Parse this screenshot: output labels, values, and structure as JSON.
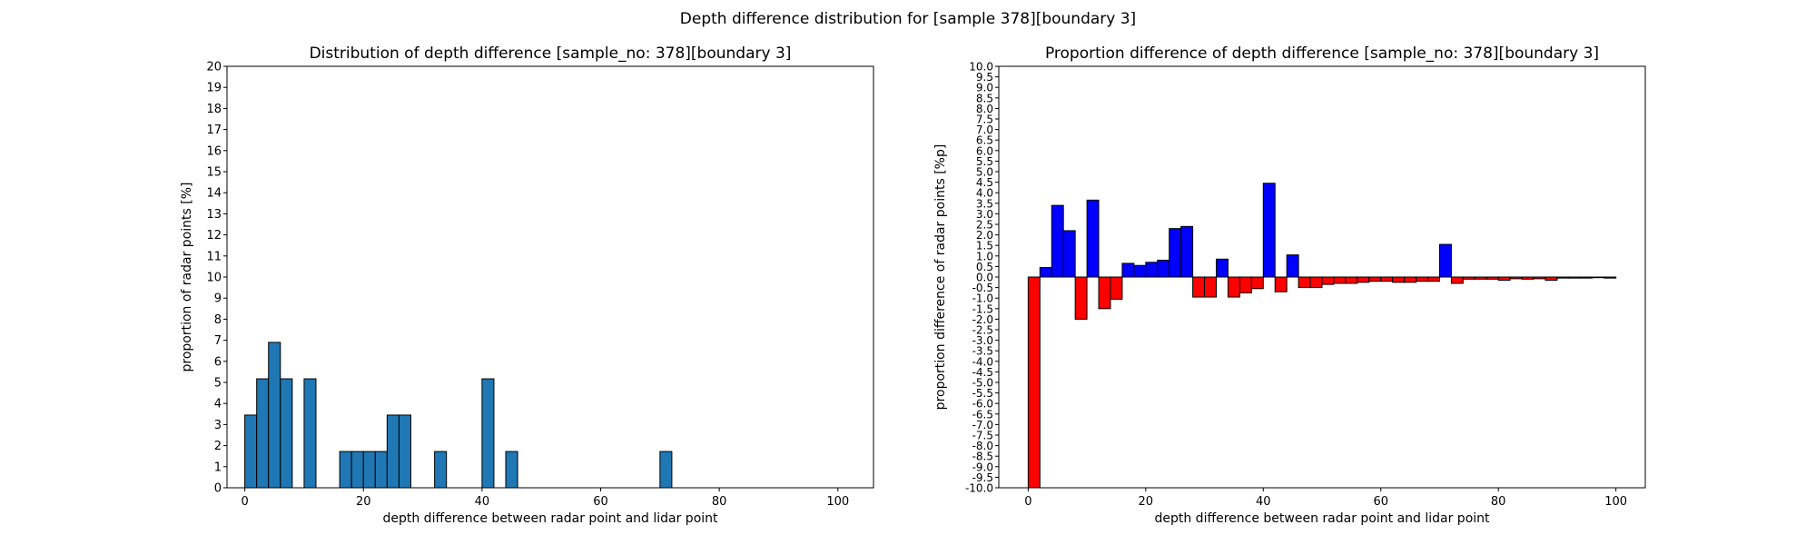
{
  "figure": {
    "suptitle": "Depth difference distribution for [sample 378][boundary 3]"
  },
  "chart_data": [
    {
      "type": "bar",
      "title": "Distribution of depth difference [sample_no: 378][boundary 3]",
      "xlabel": "depth difference between radar point and lidar point",
      "ylabel": "proportion of radar points [%]",
      "xlim": [
        -3,
        106
      ],
      "ylim": [
        0,
        20
      ],
      "xticks": [
        0,
        20,
        40,
        60,
        80,
        100
      ],
      "yticks": [
        0,
        1,
        2,
        3,
        4,
        5,
        6,
        7,
        8,
        9,
        10,
        11,
        12,
        13,
        14,
        15,
        16,
        17,
        18,
        19,
        20
      ],
      "bin_width": 2,
      "bar_color": "#1f77b4",
      "edge_color": "#000000",
      "grid": false,
      "x": [
        0,
        2,
        4,
        6,
        10,
        16,
        18,
        20,
        22,
        24,
        26,
        32,
        40,
        44,
        70
      ],
      "values": [
        3.45,
        5.17,
        6.9,
        5.17,
        5.17,
        1.72,
        1.72,
        1.72,
        1.72,
        3.45,
        3.45,
        1.72,
        5.17,
        1.72,
        1.72
      ]
    },
    {
      "type": "bar",
      "title": "Proportion difference of depth difference [sample_no: 378][boundary 3]",
      "xlabel": "depth difference between radar point and lidar point",
      "ylabel": "proportion difference of radar points [%p]",
      "xlim": [
        -5,
        105
      ],
      "ylim": [
        -10,
        10
      ],
      "xticks": [
        0,
        20,
        40,
        60,
        80,
        100
      ],
      "ytick_step": 0.5,
      "bin_width": 2,
      "positive_color": "#0000ff",
      "negative_color": "#ff0000",
      "edge_color": "#000000",
      "grid": false,
      "x": [
        0,
        2,
        4,
        6,
        8,
        10,
        12,
        14,
        16,
        18,
        20,
        22,
        24,
        26,
        28,
        30,
        32,
        34,
        36,
        38,
        40,
        42,
        44,
        46,
        48,
        50,
        52,
        54,
        56,
        58,
        60,
        62,
        64,
        66,
        68,
        70,
        72,
        74,
        76,
        78,
        80,
        82,
        84,
        86,
        88,
        90,
        92,
        94,
        96,
        98
      ],
      "values": [
        -10.0,
        0.45,
        3.4,
        2.2,
        -2.0,
        3.65,
        -1.5,
        -1.05,
        0.65,
        0.55,
        0.7,
        0.8,
        2.3,
        2.4,
        -0.95,
        -0.95,
        0.85,
        -0.95,
        -0.75,
        -0.55,
        4.45,
        -0.7,
        1.05,
        -0.5,
        -0.5,
        -0.35,
        -0.3,
        -0.3,
        -0.25,
        -0.2,
        -0.2,
        -0.25,
        -0.25,
        -0.2,
        -0.2,
        1.55,
        -0.3,
        -0.1,
        -0.1,
        -0.1,
        -0.15,
        -0.08,
        -0.1,
        -0.08,
        -0.15,
        -0.05,
        -0.05,
        -0.05,
        -0.03,
        -0.05
      ]
    }
  ]
}
